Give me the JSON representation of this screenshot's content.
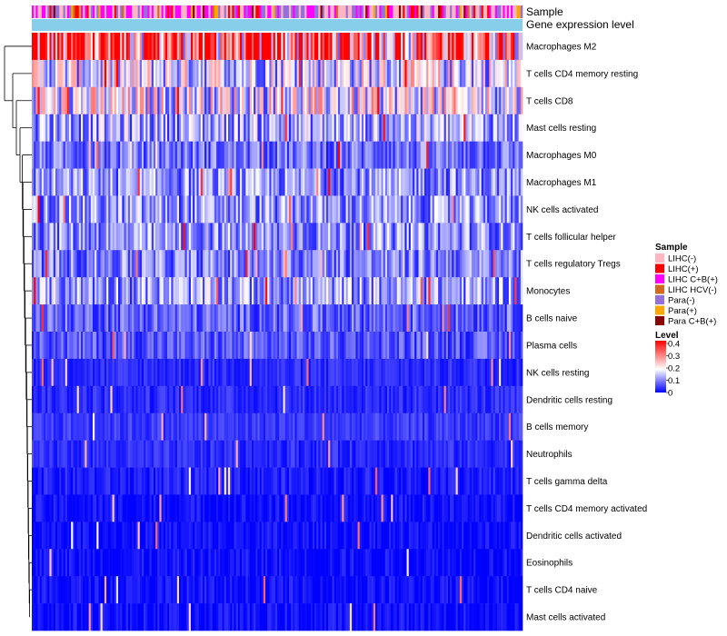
{
  "chart_data": {
    "type": "heatmap",
    "title": "",
    "annotation_tracks": [
      "Sample",
      "Gene expression level"
    ],
    "rows": [
      "Macrophages M2",
      "T cells CD4 memory resting",
      "T cells CD8",
      "Mast cells resting",
      "Macrophages M0",
      "Macrophages M1",
      "NK cells activated",
      "T cells follicular helper",
      "T cells regulatory  Tregs",
      "Monocytes",
      "B cells naive",
      "Plasma cells",
      "NK cells resting",
      "Dendritic cells resting",
      "B cells memory",
      "Neutrophils",
      "T cells gamma delta",
      "T cells CD4 memory activated",
      "Dendritic cells activated",
      "Eosinophils",
      "T cells CD4 naive",
      "Mast cells activated"
    ],
    "row_mean_level": [
      0.33,
      0.16,
      0.17,
      0.12,
      0.08,
      0.1,
      0.1,
      0.1,
      0.09,
      0.11,
      0.07,
      0.06,
      0.03,
      0.03,
      0.04,
      0.03,
      0.02,
      0.01,
      0.01,
      0.01,
      0.01,
      0.01
    ],
    "n_samples": 250,
    "sample_legend": {
      "title": "Sample",
      "entries": [
        {
          "label": "LIHC(-)",
          "color": "#ffb6c1"
        },
        {
          "label": "LIHC(+)",
          "color": "#ff0000"
        },
        {
          "label": "LIHC C+B(+)",
          "color": "#ff00ff"
        },
        {
          "label": "LIHC HCV(-)",
          "color": "#d2691e"
        },
        {
          "label": "Para(-)",
          "color": "#9370db"
        },
        {
          "label": "Para(+)",
          "color": "#ffa500"
        },
        {
          "label": "Para C+B(+)",
          "color": "#8b0000"
        }
      ]
    },
    "level_legend": {
      "title": "Level",
      "ticks": [
        "0.4",
        "0.3",
        "0.2",
        "0.1",
        "0"
      ],
      "range": [
        0,
        0.4
      ],
      "colors": [
        "#0000ff",
        "#ffffff",
        "#ff0000"
      ]
    },
    "gene_expression_track_color": "#87ceeb"
  }
}
